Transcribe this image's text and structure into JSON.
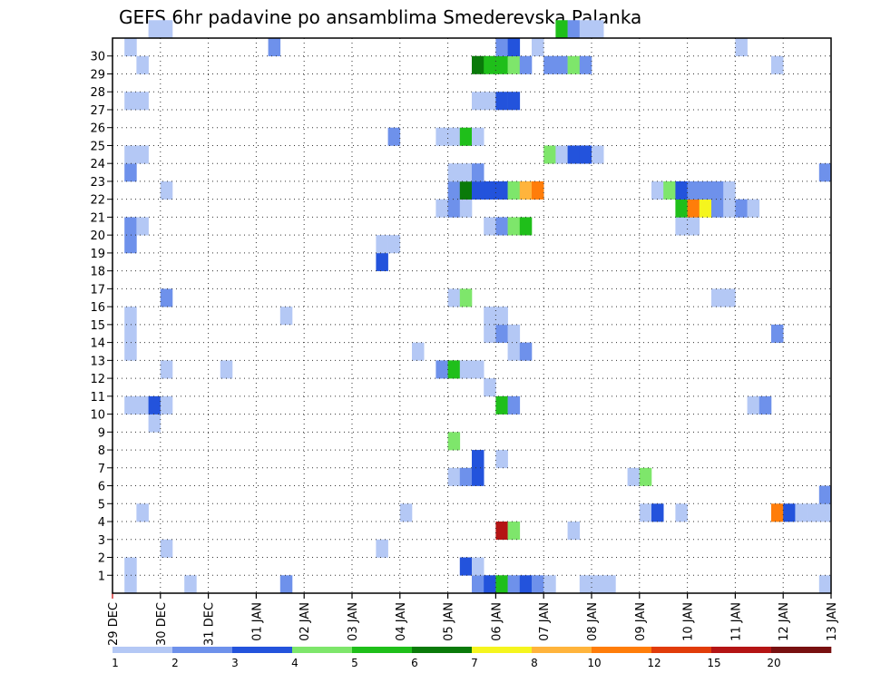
{
  "chart_data": {
    "type": "heatmap",
    "title": "GEFS 6hr padavine po ansamblima Smederevska Palanka",
    "xlabel": "",
    "ylabel": "",
    "x_tick_labels": [
      "29 DEC",
      "30 DEC",
      "31 DEC",
      "01 JAN",
      "02 JAN",
      "03 JAN",
      "04 JAN",
      "05 JAN",
      "06 JAN",
      "07 JAN",
      "08 JAN",
      "09 JAN",
      "10 JAN",
      "11 JAN",
      "12 JAN",
      "13 JAN"
    ],
    "y_tick_labels": [
      "1",
      "2",
      "3",
      "4",
      "5",
      "6",
      "7",
      "8",
      "9",
      "10",
      "11",
      "12",
      "13",
      "14",
      "15",
      "16",
      "17",
      "18",
      "19",
      "20",
      "21",
      "22",
      "23",
      "24",
      "25",
      "26",
      "27",
      "28",
      "29",
      "30"
    ],
    "x_step_hours": 6,
    "x_steps": 60,
    "y_members": 31,
    "grid": true,
    "colorbar": {
      "position": "bottom",
      "labels": [
        "1",
        "2",
        "3",
        "4",
        "5",
        "6",
        "7",
        "8",
        "10",
        "12",
        "15",
        "20"
      ],
      "colors": [
        "#b4c8f5",
        "#6e91eb",
        "#2353dc",
        "#7ee66b",
        "#1fbf1a",
        "#0a7a0a",
        "#f5f51e",
        "#ffb43c",
        "#ff7d0a",
        "#e13c0a",
        "#b41414",
        "#781010"
      ]
    },
    "cells": [
      [
        1,
        0,
        0
      ],
      [
        6,
        0,
        0
      ],
      [
        14,
        0,
        1
      ],
      [
        30,
        0,
        1
      ],
      [
        31,
        0,
        2
      ],
      [
        32,
        0,
        4
      ],
      [
        33,
        0,
        1
      ],
      [
        34,
        0,
        2
      ],
      [
        35,
        0,
        1
      ],
      [
        36,
        0,
        0
      ],
      [
        39,
        0,
        0
      ],
      [
        40,
        0,
        0
      ],
      [
        41,
        0,
        0
      ],
      [
        59,
        0,
        0
      ],
      [
        1,
        1,
        0
      ],
      [
        29,
        1,
        2
      ],
      [
        30,
        1,
        0
      ],
      [
        4,
        2,
        0
      ],
      [
        22,
        2,
        0
      ],
      [
        32,
        3,
        10
      ],
      [
        33,
        3,
        3
      ],
      [
        38,
        3,
        0
      ],
      [
        2,
        4,
        0
      ],
      [
        24,
        4,
        0
      ],
      [
        44,
        4,
        0
      ],
      [
        45,
        4,
        2
      ],
      [
        47,
        4,
        0
      ],
      [
        55,
        4,
        8
      ],
      [
        56,
        4,
        2
      ],
      [
        57,
        4,
        0
      ],
      [
        58,
        4,
        0
      ],
      [
        59,
        4,
        0
      ],
      [
        59,
        5,
        1
      ],
      [
        28,
        6,
        0
      ],
      [
        29,
        6,
        1
      ],
      [
        30,
        6,
        2
      ],
      [
        43,
        6,
        0
      ],
      [
        44,
        6,
        3
      ],
      [
        30,
        7,
        2
      ],
      [
        32,
        7,
        0
      ],
      [
        28,
        8,
        3
      ],
      [
        3,
        9,
        0
      ],
      [
        1,
        10,
        0
      ],
      [
        2,
        10,
        0
      ],
      [
        3,
        10,
        2
      ],
      [
        4,
        10,
        0
      ],
      [
        32,
        10,
        4
      ],
      [
        33,
        10,
        1
      ],
      [
        53,
        10,
        0
      ],
      [
        54,
        10,
        1
      ],
      [
        31,
        11,
        0
      ],
      [
        4,
        12,
        0
      ],
      [
        9,
        12,
        0
      ],
      [
        27,
        12,
        1
      ],
      [
        28,
        12,
        4
      ],
      [
        29,
        12,
        0
      ],
      [
        30,
        12,
        0
      ],
      [
        1,
        13,
        0
      ],
      [
        25,
        13,
        0
      ],
      [
        33,
        13,
        0
      ],
      [
        34,
        13,
        1
      ],
      [
        1,
        14,
        0
      ],
      [
        31,
        14,
        0
      ],
      [
        32,
        14,
        1
      ],
      [
        33,
        14,
        0
      ],
      [
        55,
        14,
        1
      ],
      [
        1,
        15,
        0
      ],
      [
        14,
        15,
        0
      ],
      [
        31,
        15,
        0
      ],
      [
        32,
        15,
        0
      ],
      [
        28,
        16,
        0
      ],
      [
        29,
        16,
        3
      ],
      [
        50,
        16,
        0
      ],
      [
        51,
        16,
        0
      ],
      [
        4,
        16,
        1
      ],
      [
        22,
        18,
        2
      ],
      [
        22,
        19,
        0
      ],
      [
        23,
        19,
        0
      ],
      [
        1,
        19,
        1
      ],
      [
        1,
        20,
        1
      ],
      [
        2,
        20,
        0
      ],
      [
        31,
        20,
        0
      ],
      [
        32,
        20,
        1
      ],
      [
        33,
        20,
        3
      ],
      [
        34,
        20,
        4
      ],
      [
        47,
        20,
        0
      ],
      [
        48,
        20,
        0
      ],
      [
        27,
        21,
        0
      ],
      [
        28,
        21,
        1
      ],
      [
        29,
        21,
        0
      ],
      [
        47,
        21,
        4
      ],
      [
        48,
        21,
        8
      ],
      [
        49,
        21,
        6
      ],
      [
        50,
        21,
        1
      ],
      [
        51,
        21,
        0
      ],
      [
        52,
        21,
        1
      ],
      [
        53,
        21,
        0
      ],
      [
        4,
        22,
        0
      ],
      [
        28,
        22,
        1
      ],
      [
        29,
        22,
        5
      ],
      [
        30,
        22,
        2
      ],
      [
        31,
        22,
        2
      ],
      [
        32,
        22,
        2
      ],
      [
        33,
        22,
        3
      ],
      [
        34,
        22,
        7
      ],
      [
        35,
        22,
        8
      ],
      [
        45,
        22,
        0
      ],
      [
        46,
        22,
        3
      ],
      [
        47,
        22,
        2
      ],
      [
        48,
        22,
        1
      ],
      [
        49,
        22,
        1
      ],
      [
        50,
        22,
        1
      ],
      [
        51,
        22,
        0
      ],
      [
        1,
        23,
        1
      ],
      [
        28,
        23,
        0
      ],
      [
        29,
        23,
        0
      ],
      [
        30,
        23,
        1
      ],
      [
        59,
        23,
        1
      ],
      [
        1,
        24,
        0
      ],
      [
        2,
        24,
        0
      ],
      [
        36,
        24,
        3
      ],
      [
        37,
        24,
        0
      ],
      [
        38,
        24,
        2
      ],
      [
        39,
        24,
        2
      ],
      [
        40,
        24,
        0
      ],
      [
        23,
        25,
        1
      ],
      [
        27,
        25,
        0
      ],
      [
        28,
        25,
        0
      ],
      [
        29,
        25,
        4
      ],
      [
        30,
        25,
        0
      ],
      [
        1,
        27,
        0
      ],
      [
        2,
        27,
        0
      ],
      [
        30,
        27,
        0
      ],
      [
        31,
        27,
        0
      ],
      [
        32,
        27,
        2
      ],
      [
        33,
        27,
        2
      ],
      [
        2,
        29,
        0
      ],
      [
        30,
        29,
        5
      ],
      [
        31,
        29,
        4
      ],
      [
        32,
        29,
        4
      ],
      [
        33,
        29,
        3
      ],
      [
        34,
        29,
        1
      ],
      [
        36,
        29,
        1
      ],
      [
        37,
        29,
        1
      ],
      [
        38,
        29,
        3
      ],
      [
        39,
        29,
        1
      ],
      [
        55,
        29,
        0
      ],
      [
        1,
        30,
        0
      ],
      [
        13,
        30,
        1
      ],
      [
        32,
        30,
        1
      ],
      [
        33,
        30,
        2
      ],
      [
        35,
        30,
        0
      ],
      [
        52,
        30,
        0
      ],
      [
        3,
        31,
        0
      ],
      [
        4,
        31,
        0
      ],
      [
        37,
        31,
        4
      ],
      [
        38,
        31,
        1
      ],
      [
        39,
        31,
        0
      ],
      [
        40,
        31,
        0
      ]
    ]
  }
}
